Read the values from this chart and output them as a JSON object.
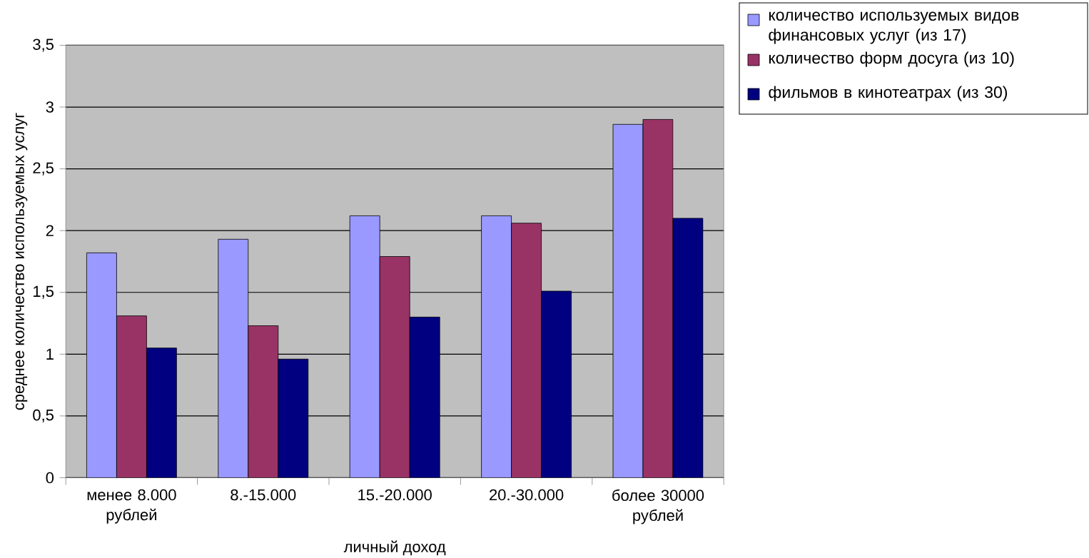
{
  "chart_data": {
    "type": "bar",
    "xlabel": "личный доход",
    "ylabel": "среднее количество используемых услуг",
    "categories": [
      "менее 8.000 рублей",
      "8.-15.000",
      "15.-20.000",
      "20.-30.000",
      "более 30000 рублей"
    ],
    "series": [
      {
        "name": "количество используемых видов финансовых услуг (из 17)",
        "color": "#9999ff",
        "values": [
          1.82,
          1.93,
          2.12,
          2.12,
          2.86
        ]
      },
      {
        "name": "количество форм досуга (из 10)",
        "color": "#993366",
        "values": [
          1.31,
          1.23,
          1.79,
          2.06,
          2.9
        ]
      },
      {
        "name": "фильмов в кинотеатрах (из 30)",
        "color": "#000080",
        "values": [
          1.05,
          0.96,
          1.3,
          1.51,
          2.1
        ]
      }
    ],
    "ylim": [
      0,
      3.5
    ],
    "yticks": [
      0,
      {
        "value": 0.5,
        "label": "0,5"
      },
      1,
      {
        "value": 1.5,
        "label": "1,5"
      },
      2,
      {
        "value": 2.5,
        "label": "2,5"
      },
      3,
      {
        "value": 3.5,
        "label": "3,5"
      }
    ],
    "grid": "y",
    "legend": "top right"
  }
}
